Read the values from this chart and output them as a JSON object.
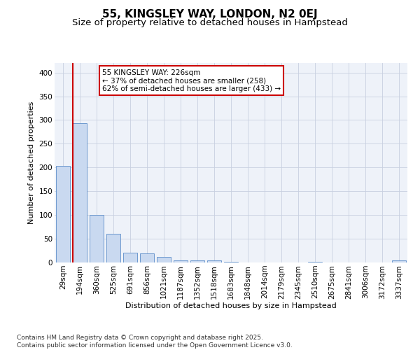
{
  "title1": "55, KINGSLEY WAY, LONDON, N2 0EJ",
  "title2": "Size of property relative to detached houses in Hampstead",
  "xlabel": "Distribution of detached houses by size in Hampstead",
  "ylabel": "Number of detached properties",
  "categories": [
    "29sqm",
    "194sqm",
    "360sqm",
    "525sqm",
    "691sqm",
    "856sqm",
    "1021sqm",
    "1187sqm",
    "1352sqm",
    "1518sqm",
    "1683sqm",
    "1848sqm",
    "2014sqm",
    "2179sqm",
    "2345sqm",
    "2510sqm",
    "2675sqm",
    "2841sqm",
    "3006sqm",
    "3172sqm",
    "3337sqm"
  ],
  "values": [
    203,
    293,
    100,
    61,
    20,
    19,
    12,
    5,
    5,
    4,
    1,
    0,
    0,
    0,
    0,
    1,
    0,
    0,
    0,
    0,
    4
  ],
  "bar_color": "#c9d9f0",
  "bar_edge_color": "#5b8cc8",
  "vline_color": "#cc0000",
  "annotation_text": "55 KINGSLEY WAY: 226sqm\n← 37% of detached houses are smaller (258)\n62% of semi-detached houses are larger (433) →",
  "annotation_box_color": "#ffffff",
  "annotation_box_edge_color": "#cc0000",
  "ylim": [
    0,
    420
  ],
  "yticks": [
    0,
    50,
    100,
    150,
    200,
    250,
    300,
    350,
    400
  ],
  "grid_color": "#c8d0e0",
  "background_color": "#eef2f9",
  "footer": "Contains HM Land Registry data © Crown copyright and database right 2025.\nContains public sector information licensed under the Open Government Licence v3.0.",
  "title1_fontsize": 11,
  "title2_fontsize": 9.5,
  "xlabel_fontsize": 8,
  "ylabel_fontsize": 8,
  "tick_fontsize": 7.5,
  "annotation_fontsize": 7.5,
  "footer_fontsize": 6.5
}
